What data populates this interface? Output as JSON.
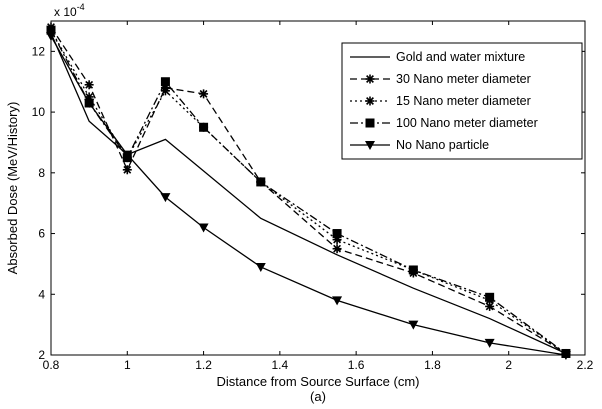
{
  "chart_data": {
    "type": "line",
    "title": "",
    "xlabel": "Distance from Source Surface (cm)",
    "ylabel": "Absorbed Dose (MeV/History)",
    "exponent_label": "x 10",
    "exponent_power": "-4",
    "caption": "(a)",
    "xlim": [
      0.8,
      2.2
    ],
    "ylim": [
      2,
      13
    ],
    "xticks": [
      "0.8",
      "1",
      "1.2",
      "1.4",
      "1.6",
      "1.8",
      "2",
      "2.2"
    ],
    "yticks": [
      "2",
      "4",
      "6",
      "8",
      "10",
      "12"
    ],
    "grid": false,
    "legend_position": "top-right",
    "series": [
      {
        "name": "Gold and water mixture",
        "style": "solid",
        "marker": "none",
        "x": [
          0.8,
          0.9,
          1.0,
          1.1,
          1.35,
          1.55,
          1.75,
          1.95,
          2.15
        ],
        "y": [
          12.6,
          9.7,
          8.6,
          9.1,
          6.5,
          5.3,
          4.2,
          3.2,
          2.05
        ]
      },
      {
        "name": "30 Nano meter diameter",
        "style": "dashed",
        "marker": "star",
        "x": [
          0.8,
          0.9,
          1.0,
          1.1,
          1.2,
          1.35,
          1.55,
          1.75,
          1.95,
          2.15
        ],
        "y": [
          12.8,
          10.9,
          8.1,
          10.8,
          10.6,
          7.7,
          5.5,
          4.7,
          3.6,
          2.05
        ]
      },
      {
        "name": "15 Nano meter diameter",
        "style": "dotted",
        "marker": "star",
        "x": [
          0.8,
          0.9,
          1.0,
          1.1,
          1.2,
          1.35,
          1.55,
          1.75,
          1.95,
          2.15
        ],
        "y": [
          12.7,
          10.5,
          8.5,
          10.7,
          9.5,
          7.7,
          5.8,
          4.8,
          3.8,
          2.05
        ]
      },
      {
        "name": "100 Nano meter diameter",
        "style": "dashdot",
        "marker": "square",
        "x": [
          0.8,
          0.9,
          1.0,
          1.1,
          1.2,
          1.35,
          1.55,
          1.75,
          1.95,
          2.15
        ],
        "y": [
          12.7,
          10.3,
          8.5,
          11.0,
          9.5,
          7.7,
          6.0,
          4.8,
          3.9,
          2.05
        ]
      },
      {
        "name": "No Nano particle",
        "style": "solid",
        "marker": "triangle-down",
        "x": [
          0.8,
          0.9,
          1.0,
          1.1,
          1.2,
          1.35,
          1.55,
          1.75,
          1.95,
          2.15
        ],
        "y": [
          12.5,
          10.3,
          8.6,
          7.2,
          6.2,
          4.9,
          3.8,
          3.0,
          2.4,
          2.0
        ]
      }
    ]
  }
}
